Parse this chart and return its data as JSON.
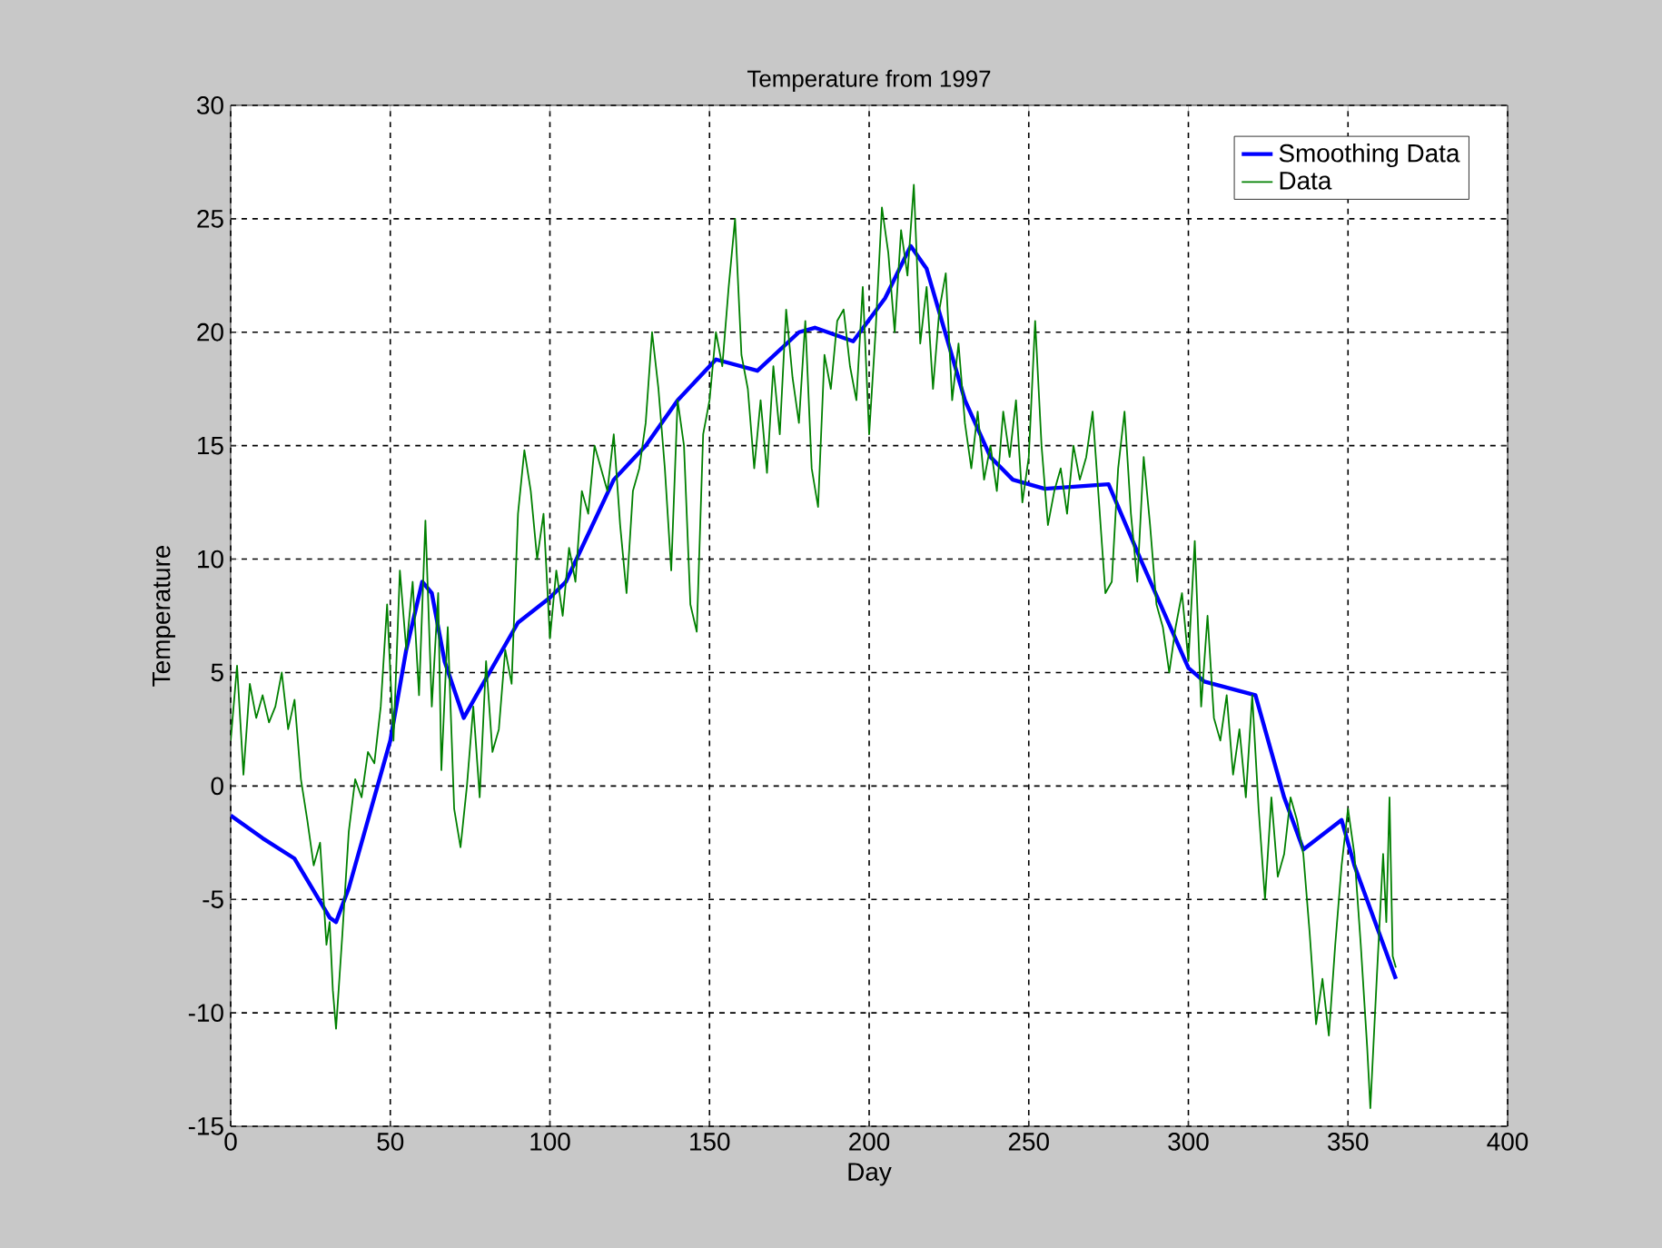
{
  "chart_data": {
    "type": "line",
    "title": "Temperature from 1997",
    "xlabel": "Day",
    "ylabel": "Temperature",
    "xlim": [
      0,
      400
    ],
    "xticks": [
      0,
      50,
      100,
      150,
      200,
      250,
      300,
      350,
      400
    ],
    "ylim": [
      -15,
      30
    ],
    "yticks": [
      -15,
      -10,
      -5,
      0,
      5,
      10,
      15,
      20,
      25,
      30
    ],
    "grid": true,
    "legend": "top right",
    "series": [
      {
        "name": "Smoothing Data",
        "color": "#0000ff",
        "x": [
          0,
          10,
          20,
          31,
          33,
          37,
          50,
          55,
          60,
          63,
          67,
          73,
          77,
          90,
          100,
          105,
          120,
          130,
          140,
          152,
          165,
          178,
          183,
          195,
          205,
          213,
          218,
          230,
          238,
          245,
          255,
          265,
          275,
          285,
          300,
          305,
          321,
          330,
          336,
          348,
          352,
          365
        ],
        "values": [
          -1.3,
          -2.3,
          -3.2,
          -5.8,
          -6,
          -4.5,
          2,
          6,
          9,
          8.5,
          5.5,
          3,
          4,
          7.2,
          8.3,
          9,
          13.5,
          15,
          17,
          18.8,
          18.3,
          20,
          20.2,
          19.6,
          21.5,
          23.8,
          22.8,
          17,
          14.5,
          13.5,
          13.1,
          13.2,
          13.3,
          10,
          5.2,
          4.6,
          4,
          -0.5,
          -2.8,
          -1.5,
          -3.5,
          -8.5
        ]
      },
      {
        "name": "Data",
        "color": "#008000",
        "x": [
          0,
          2,
          4,
          6,
          8,
          10,
          12,
          14,
          16,
          18,
          20,
          22,
          24,
          26,
          28,
          30,
          31,
          32,
          33,
          35,
          37,
          39,
          41,
          43,
          45,
          47,
          49,
          51,
          53,
          55,
          57,
          59,
          61,
          63,
          65,
          66,
          68,
          70,
          72,
          74,
          76,
          78,
          80,
          82,
          84,
          86,
          88,
          90,
          92,
          94,
          96,
          98,
          100,
          102,
          104,
          106,
          108,
          110,
          112,
          114,
          116,
          118,
          120,
          122,
          124,
          126,
          128,
          130,
          132,
          134,
          136,
          138,
          140,
          142,
          144,
          146,
          148,
          150,
          152,
          154,
          156,
          158,
          160,
          162,
          164,
          166,
          168,
          170,
          172,
          174,
          176,
          178,
          180,
          182,
          184,
          186,
          188,
          190,
          192,
          194,
          196,
          198,
          200,
          202,
          204,
          206,
          208,
          210,
          212,
          214,
          216,
          218,
          220,
          222,
          224,
          226,
          228,
          230,
          232,
          234,
          236,
          238,
          240,
          242,
          244,
          246,
          248,
          250,
          252,
          254,
          256,
          258,
          260,
          262,
          264,
          266,
          268,
          270,
          272,
          274,
          276,
          278,
          280,
          282,
          284,
          286,
          288,
          290,
          292,
          294,
          296,
          298,
          300,
          302,
          304,
          306,
          308,
          310,
          312,
          314,
          316,
          318,
          320,
          322,
          324,
          326,
          328,
          330,
          332,
          334,
          336,
          338,
          340,
          342,
          344,
          346,
          348,
          350,
          352,
          354,
          356,
          357,
          359,
          361,
          362,
          363,
          364,
          365
        ],
        "values": [
          2,
          5.3,
          0.5,
          4.5,
          3,
          4,
          2.8,
          3.5,
          5,
          2.5,
          3.8,
          0.3,
          -1.5,
          -3.5,
          -2.5,
          -7,
          -6,
          -9,
          -10.7,
          -6.5,
          -2,
          0.3,
          -0.5,
          1.5,
          1,
          3.5,
          8,
          2,
          9.5,
          6,
          9,
          4,
          11.7,
          3.5,
          8.5,
          0.7,
          7,
          -1,
          -2.7,
          0,
          3.5,
          -0.5,
          5.5,
          1.5,
          2.5,
          6,
          4.5,
          12,
          14.8,
          13,
          10,
          12,
          6.5,
          9.5,
          7.5,
          10.5,
          9,
          13,
          12,
          15,
          14,
          13,
          15.5,
          11.5,
          8.5,
          13,
          14,
          16,
          20,
          17.5,
          14,
          9.5,
          17,
          15,
          8,
          6.8,
          15.5,
          17,
          20,
          18.5,
          22,
          25,
          19,
          17.5,
          14,
          17,
          13.8,
          18.5,
          15.5,
          21,
          18,
          16,
          20.5,
          14,
          12.3,
          19,
          17.5,
          20.5,
          21,
          18.5,
          17,
          22,
          15.5,
          20,
          25.5,
          23.5,
          20,
          24.5,
          22.5,
          26.5,
          19.5,
          22,
          17.5,
          21,
          22.6,
          17,
          19.5,
          16,
          14,
          16.5,
          13.5,
          15,
          13,
          16.5,
          14.5,
          17,
          12.5,
          14.5,
          20.5,
          15,
          11.5,
          13,
          14,
          12,
          15,
          13.5,
          14.5,
          16.5,
          12.5,
          8.5,
          9,
          14,
          16.5,
          12,
          9,
          14.5,
          11.5,
          8,
          7,
          5,
          7,
          8.5,
          5.5,
          10.8,
          3.5,
          7.5,
          3,
          2,
          4,
          0.5,
          2.5,
          -0.5,
          4,
          -1,
          -5,
          -0.5,
          -4,
          -3,
          -0.5,
          -1.5,
          -3,
          -6.5,
          -10.5,
          -8.5,
          -11,
          -7,
          -3.5,
          -1,
          -3,
          -7,
          -11.5,
          -14.2,
          -8.5,
          -3,
          -6,
          -0.5,
          -7.5,
          -8
        ]
      }
    ]
  }
}
